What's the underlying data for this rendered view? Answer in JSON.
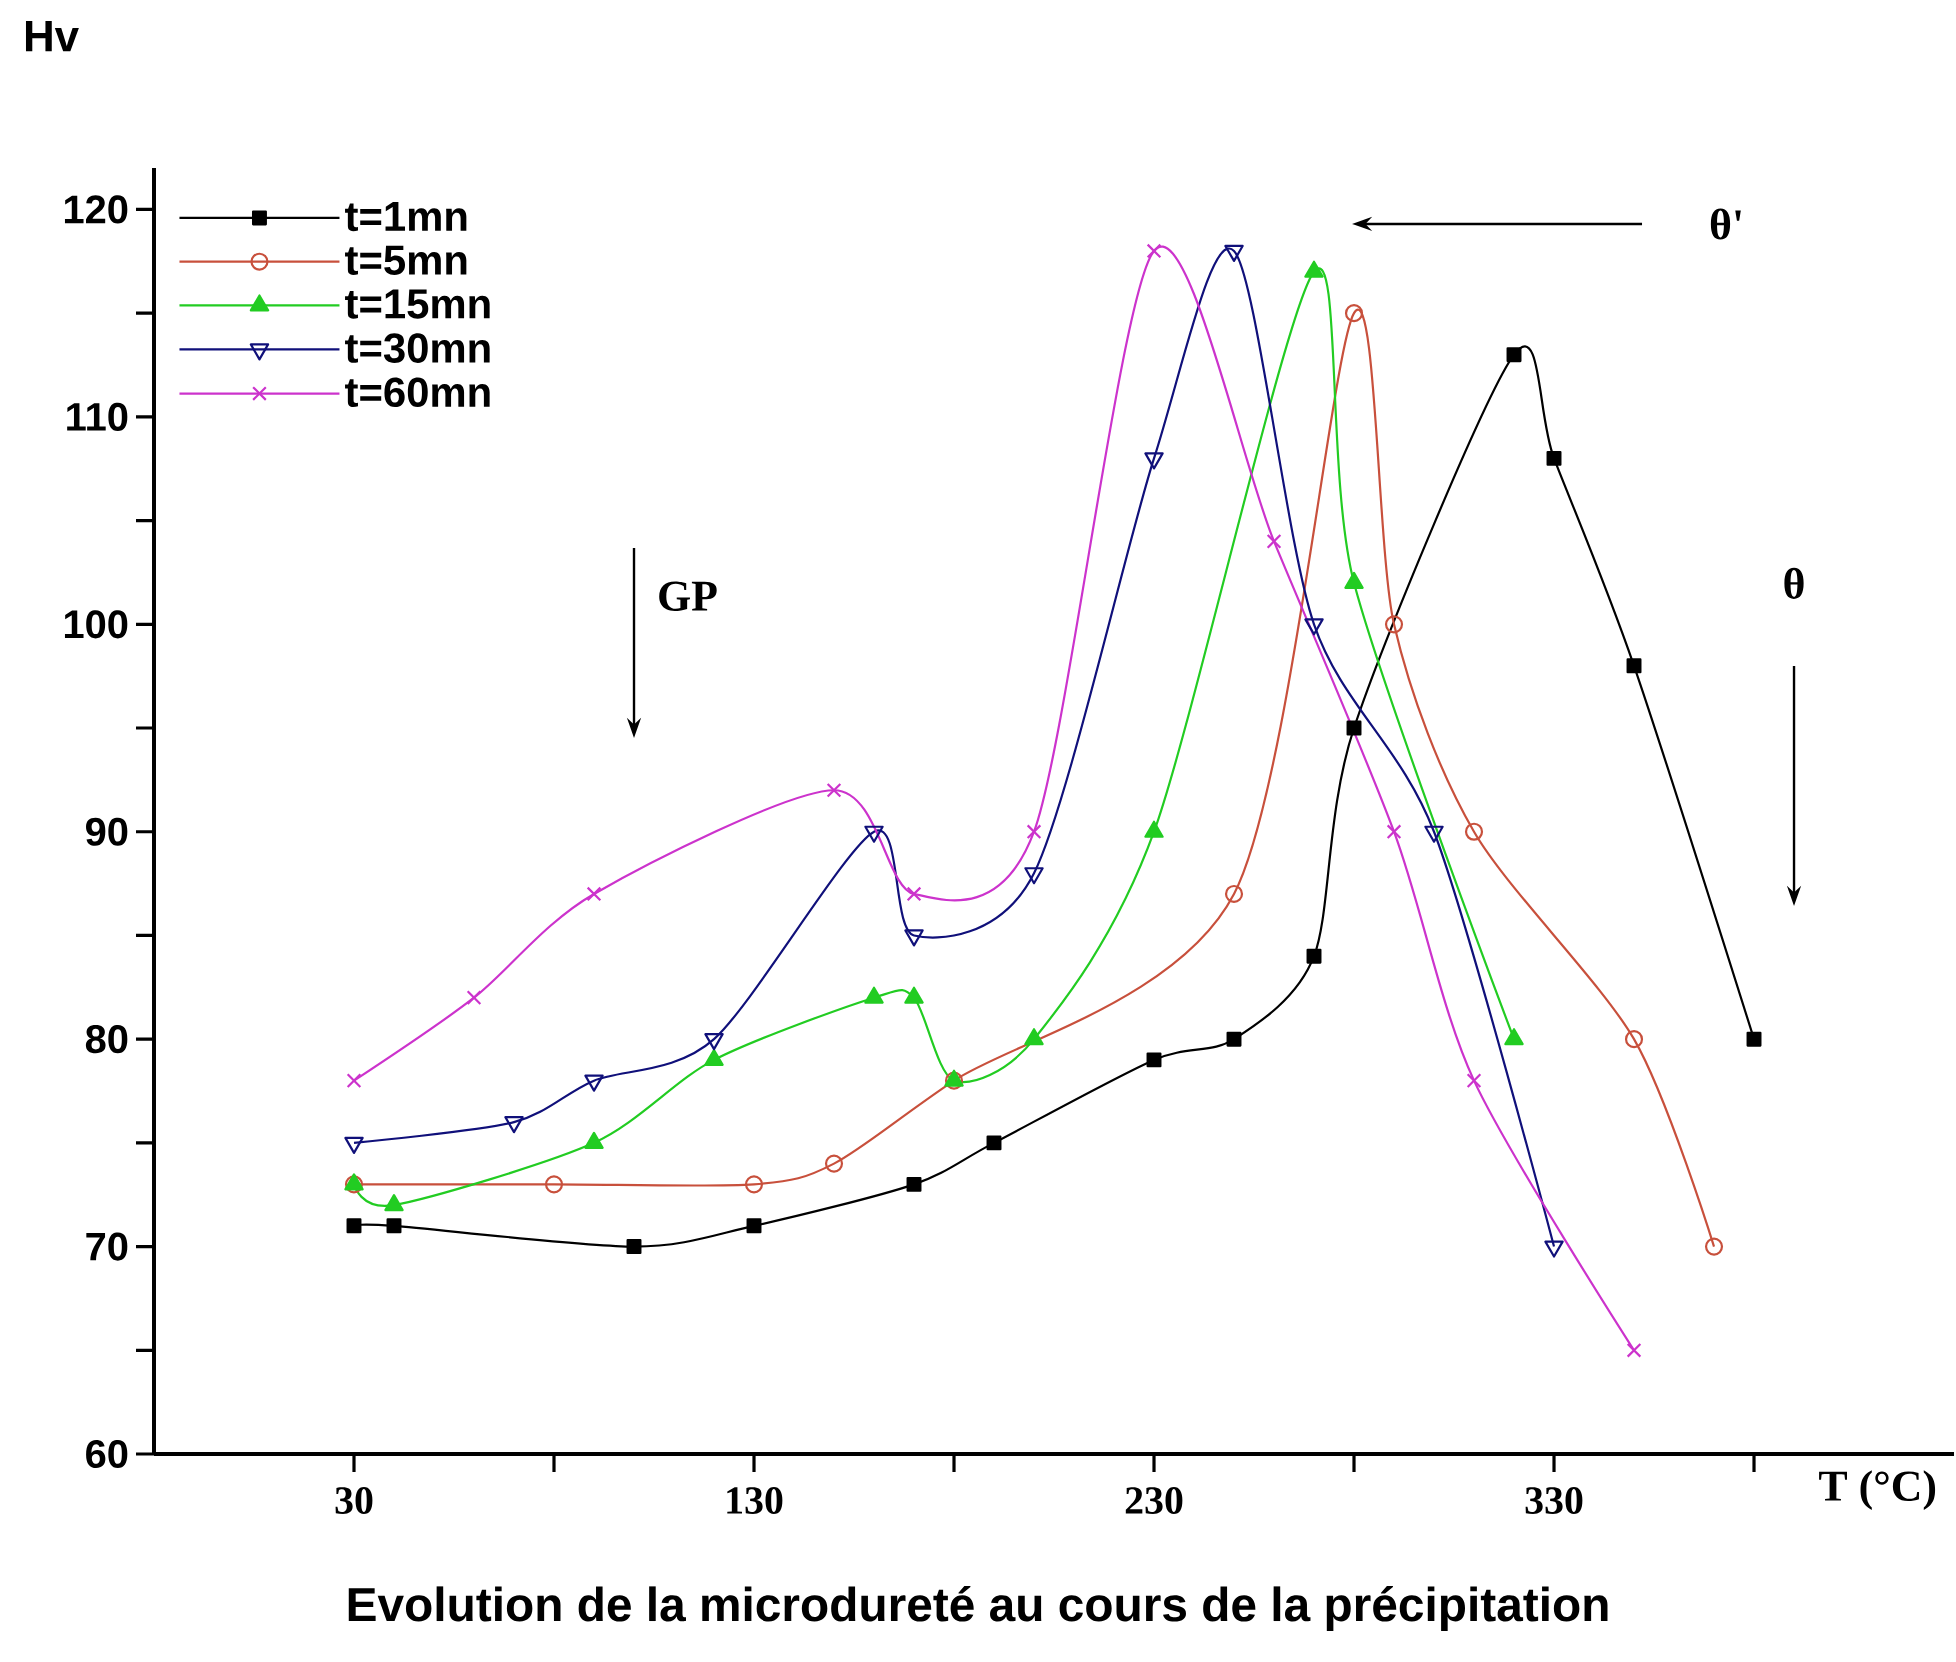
{
  "chart_data": {
    "type": "line",
    "title": "Evolution  de la microdureté  au cours de la précipitation",
    "xlabel": "T (°C)",
    "ylabel": "Hv",
    "xlim": [
      -20,
      430
    ],
    "ylim": [
      60,
      122
    ],
    "xticks": [
      30,
      {
        "value": 80,
        "label": null
      },
      130,
      {
        "value": 180,
        "label": null
      },
      230,
      {
        "value": 280,
        "label": null
      },
      330,
      {
        "value": 380,
        "label": null
      }
    ],
    "yticks": [
      60,
      {
        "value": 65,
        "label": null
      },
      70,
      {
        "value": 75,
        "label": null
      },
      80,
      {
        "value": 85,
        "label": null
      },
      90,
      {
        "value": 95,
        "label": null
      },
      100,
      {
        "value": 105,
        "label": null
      },
      110,
      {
        "value": 115,
        "label": null
      },
      120
    ],
    "legend": "top left",
    "grid": false,
    "series": [
      {
        "name": "t=1mn",
        "color": "#000000",
        "marker": "square",
        "x": [
          30,
          40,
          100,
          130,
          170,
          190,
          230,
          250,
          270,
          280,
          320,
          330,
          350,
          380
        ],
        "values": [
          71,
          71,
          70,
          71,
          73,
          75,
          79,
          80,
          84,
          95,
          113,
          108,
          98,
          80
        ]
      },
      {
        "name": "t=5mn",
        "color": "#c8503c",
        "marker": "circle",
        "x": [
          30,
          80,
          130,
          150,
          180,
          250,
          280,
          290,
          310,
          350,
          370
        ],
        "values": [
          73,
          73,
          73,
          74,
          78,
          87,
          115,
          100,
          90,
          80,
          70
        ]
      },
      {
        "name": "t=15mn",
        "color": "#22cc22",
        "marker": "triangle",
        "x": [
          30,
          40,
          90,
          120,
          160,
          170,
          180,
          200,
          230,
          270,
          280,
          320
        ],
        "values": [
          73,
          72,
          75,
          79,
          82,
          82,
          78,
          80,
          90,
          117,
          102,
          80
        ]
      },
      {
        "name": "t=30mn",
        "color": "#10107a",
        "marker": "triangle-down",
        "x": [
          30,
          70,
          90,
          120,
          160,
          170,
          200,
          230,
          250,
          270,
          300,
          330
        ],
        "values": [
          75,
          76,
          78,
          80,
          90,
          85,
          88,
          108,
          118,
          100,
          90,
          70
        ]
      },
      {
        "name": "t=60mn",
        "color": "#cc33cc",
        "marker": "cross",
        "x": [
          30,
          60,
          90,
          150,
          170,
          200,
          230,
          260,
          290,
          310,
          350
        ],
        "values": [
          78,
          82,
          87,
          92,
          87,
          90,
          118,
          104,
          90,
          78,
          65
        ]
      }
    ],
    "annotations": [
      "GP",
      "θ'",
      "θ"
    ]
  }
}
